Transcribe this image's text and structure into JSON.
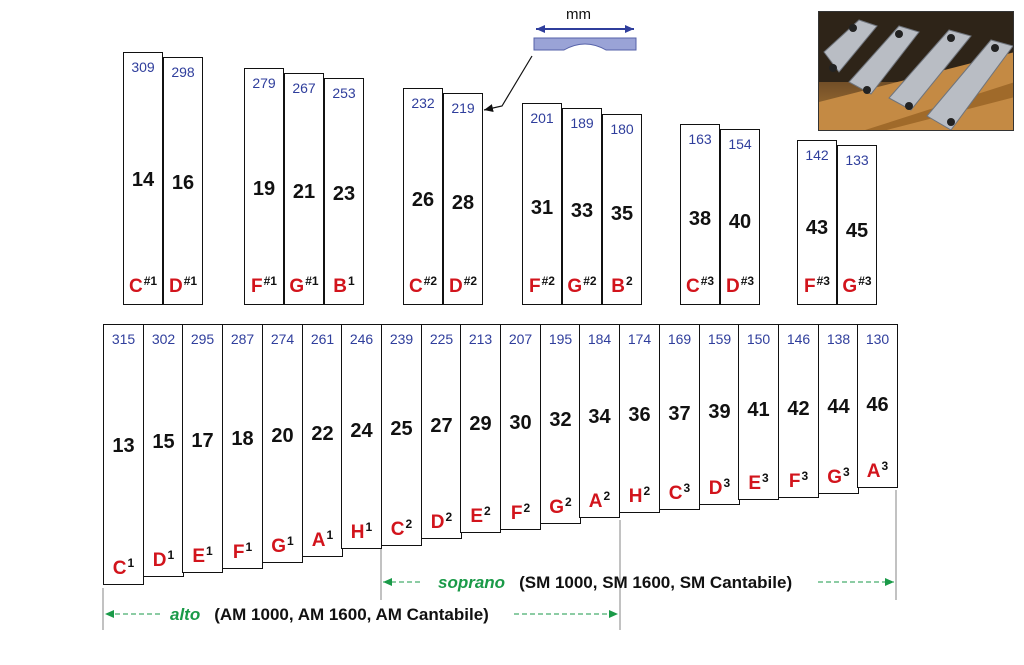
{
  "legend": {
    "unit_label": "mm"
  },
  "upper_bars": [
    {
      "length_mm": "309",
      "number": "14",
      "note": "C",
      "sup": "#1"
    },
    {
      "length_mm": "298",
      "number": "16",
      "note": "D",
      "sup": "#1"
    },
    {
      "length_mm": "279",
      "number": "19",
      "note": "F",
      "sup": "#1"
    },
    {
      "length_mm": "267",
      "number": "21",
      "note": "G",
      "sup": "#1"
    },
    {
      "length_mm": "253",
      "number": "23",
      "note": "B",
      "sup": "1"
    },
    {
      "length_mm": "232",
      "number": "26",
      "note": "C",
      "sup": "#2"
    },
    {
      "length_mm": "219",
      "number": "28",
      "note": "D",
      "sup": "#2"
    },
    {
      "length_mm": "201",
      "number": "31",
      "note": "F",
      "sup": "#2"
    },
    {
      "length_mm": "189",
      "number": "33",
      "note": "G",
      "sup": "#2"
    },
    {
      "length_mm": "180",
      "number": "35",
      "note": "B",
      "sup": "2"
    },
    {
      "length_mm": "163",
      "number": "38",
      "note": "C",
      "sup": "#3"
    },
    {
      "length_mm": "154",
      "number": "40",
      "note": "D",
      "sup": "#3"
    },
    {
      "length_mm": "142",
      "number": "43",
      "note": "F",
      "sup": "#3"
    },
    {
      "length_mm": "133",
      "number": "45",
      "note": "G",
      "sup": "#3"
    }
  ],
  "lower_bars": [
    {
      "length_mm": "315",
      "number": "13",
      "note": "C",
      "sup": "1"
    },
    {
      "length_mm": "302",
      "number": "15",
      "note": "D",
      "sup": "1"
    },
    {
      "length_mm": "295",
      "number": "17",
      "note": "E",
      "sup": "1"
    },
    {
      "length_mm": "287",
      "number": "18",
      "note": "F",
      "sup": "1"
    },
    {
      "length_mm": "274",
      "number": "20",
      "note": "G",
      "sup": "1"
    },
    {
      "length_mm": "261",
      "number": "22",
      "note": "A",
      "sup": "1"
    },
    {
      "length_mm": "246",
      "number": "24",
      "note": "H",
      "sup": "1"
    },
    {
      "length_mm": "239",
      "number": "25",
      "note": "C",
      "sup": "2"
    },
    {
      "length_mm": "225",
      "number": "27",
      "note": "D",
      "sup": "2"
    },
    {
      "length_mm": "213",
      "number": "29",
      "note": "E",
      "sup": "2"
    },
    {
      "length_mm": "207",
      "number": "30",
      "note": "F",
      "sup": "2"
    },
    {
      "length_mm": "195",
      "number": "32",
      "note": "G",
      "sup": "2"
    },
    {
      "length_mm": "184",
      "number": "34",
      "note": "A",
      "sup": "2"
    },
    {
      "length_mm": "174",
      "number": "36",
      "note": "H",
      "sup": "2"
    },
    {
      "length_mm": "169",
      "number": "37",
      "note": "C",
      "sup": "3"
    },
    {
      "length_mm": "159",
      "number": "39",
      "note": "D",
      "sup": "3"
    },
    {
      "length_mm": "150",
      "number": "41",
      "note": "E",
      "sup": "3"
    },
    {
      "length_mm": "146",
      "number": "42",
      "note": "F",
      "sup": "3"
    },
    {
      "length_mm": "138",
      "number": "44",
      "note": "G",
      "sup": "3"
    },
    {
      "length_mm": "130",
      "number": "46",
      "note": "A",
      "sup": "3"
    }
  ],
  "ranges": {
    "soprano": {
      "voice": "soprano",
      "models": "(SM 1000, SM 1600, SM Cantabile)"
    },
    "alto": {
      "voice": "alto",
      "models": "(AM 1000, AM 1600, AM Cantabile)"
    }
  },
  "colors": {
    "length": "#2f3e9c",
    "note": "#d2141c",
    "range": "#1a9a48",
    "bar_outline": "#111111"
  }
}
